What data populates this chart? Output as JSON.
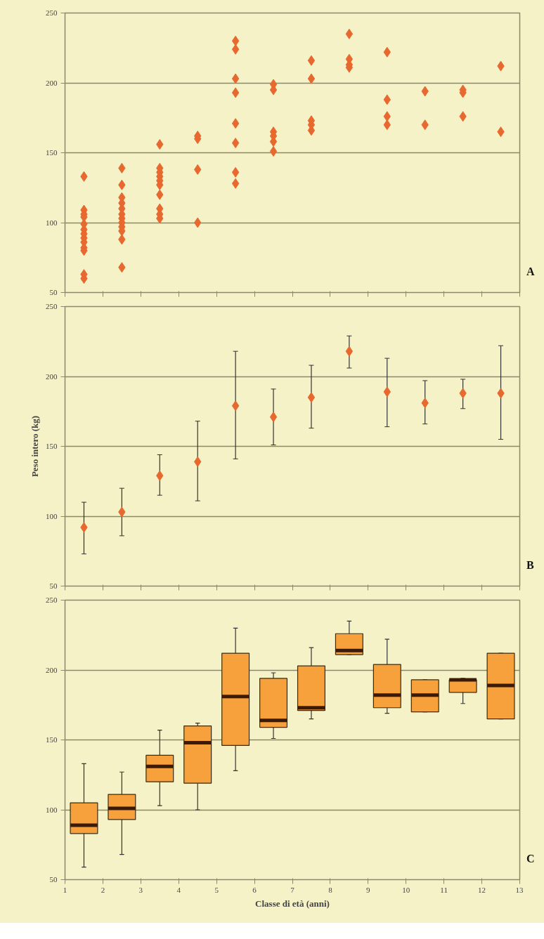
{
  "chart_data": [
    {
      "type": "scatter",
      "marker": "diamond",
      "color": "#e8692f",
      "x": [
        1.5,
        1.5,
        1.5,
        1.5,
        1.5,
        1.5,
        1.5,
        1.5,
        1.5,
        1.5,
        1.5,
        1.5,
        1.5,
        2.5,
        2.5,
        2.5,
        2.5,
        2.5,
        2.5,
        2.5,
        2.5,
        2.5,
        2.5,
        2.5,
        2.5,
        3.5,
        3.5,
        3.5,
        3.5,
        3.5,
        3.5,
        3.5,
        3.5,
        3.5,
        3.5,
        4.5,
        4.5,
        4.5,
        4.5,
        5.5,
        5.5,
        5.5,
        5.5,
        5.5,
        5.5,
        5.5,
        5.5,
        6.5,
        6.5,
        6.5,
        6.5,
        6.5,
        6.5,
        7.5,
        7.5,
        7.5,
        7.5,
        7.5,
        8.5,
        8.5,
        8.5,
        8.5,
        9.5,
        9.5,
        9.5,
        9.5,
        10.5,
        10.5,
        11.5,
        11.5,
        11.5,
        12.5,
        12.5
      ],
      "values": [
        133,
        109,
        106,
        104,
        99,
        95,
        92,
        89,
        86,
        82,
        80,
        63,
        60,
        139,
        127,
        118,
        114,
        110,
        106,
        103,
        100,
        97,
        94,
        88,
        68,
        156,
        139,
        136,
        133,
        130,
        127,
        120,
        110,
        106,
        103,
        162,
        160,
        138,
        100,
        230,
        224,
        203,
        193,
        171,
        157,
        136,
        128,
        199,
        195,
        165,
        162,
        158,
        151,
        216,
        203,
        173,
        170,
        166,
        235,
        217,
        213,
        211,
        222,
        188,
        176,
        170,
        194,
        170,
        195,
        193,
        176,
        212,
        165
      ],
      "xlim": [
        1,
        13
      ],
      "xticks": [
        1,
        2,
        3,
        4,
        5,
        6,
        7,
        8,
        9,
        10,
        11,
        12,
        13
      ],
      "ylim": [
        50,
        250
      ],
      "yticks": [
        50,
        100,
        150,
        200,
        250
      ],
      "grid": "y",
      "tick_labels": "y",
      "annotations": [
        "A"
      ]
    },
    {
      "type": "scatter",
      "marker": "diamond",
      "color": "#e8692f",
      "x": [
        1.5,
        2.5,
        3.5,
        4.5,
        5.5,
        6.5,
        7.5,
        8.5,
        9.5,
        10.5,
        11.5,
        12.5
      ],
      "values": [
        92,
        103,
        129,
        139,
        179,
        171,
        185,
        218,
        189,
        181,
        188,
        188
      ],
      "errors": [
        [
          73,
          110
        ],
        [
          86,
          120
        ],
        [
          115,
          144
        ],
        [
          111,
          168
        ],
        [
          141,
          218
        ],
        [
          151,
          191
        ],
        [
          163,
          208
        ],
        [
          206,
          229
        ],
        [
          164,
          213
        ],
        [
          166,
          197
        ],
        [
          177,
          198
        ],
        [
          155,
          222
        ]
      ],
      "ylabel": "Peso intero (kg)",
      "xlim": [
        1,
        13
      ],
      "xticks": [
        1,
        2,
        3,
        4,
        5,
        6,
        7,
        8,
        9,
        10,
        11,
        12,
        13
      ],
      "ylim": [
        50,
        250
      ],
      "yticks": [
        50,
        100,
        150,
        200,
        250
      ],
      "grid": "y",
      "tick_labels": "y",
      "annotations": [
        "B"
      ]
    },
    {
      "type": "box",
      "color": "#f7a13c",
      "x": [
        1.5,
        2.5,
        3.5,
        4.5,
        5.5,
        6.5,
        7.5,
        8.5,
        9.5,
        10.5,
        11.5,
        12.5
      ],
      "boxes": [
        {
          "low": 59,
          "q1": 83,
          "median": 89,
          "q3": 105,
          "high": 133
        },
        {
          "low": 68,
          "q1": 93,
          "median": 101,
          "q3": 111,
          "high": 127
        },
        {
          "low": 103,
          "q1": 120,
          "median": 131,
          "q3": 139,
          "high": 157
        },
        {
          "low": 100,
          "q1": 119,
          "median": 148,
          "q3": 160,
          "high": 162
        },
        {
          "low": 128,
          "q1": 146,
          "median": 181,
          "q3": 212,
          "high": 230
        },
        {
          "low": 151,
          "q1": 159,
          "median": 164,
          "q3": 194,
          "high": 198
        },
        {
          "low": 165,
          "q1": 171,
          "median": 173,
          "q3": 203,
          "high": 216
        },
        {
          "low": 211,
          "q1": 211,
          "median": 214,
          "q3": 226,
          "high": 235
        },
        {
          "low": 169,
          "q1": 173,
          "median": 182,
          "q3": 204,
          "high": 222
        },
        {
          "low": 170,
          "q1": 170,
          "median": 182,
          "q3": 193,
          "high": 193
        },
        {
          "low": 176,
          "q1": 184,
          "median": 193,
          "q3": 193,
          "high": 194
        },
        {
          "low": 165,
          "q1": 165,
          "median": 189,
          "q3": 212,
          "high": 212
        }
      ],
      "xlabel": "Classe di età (anni)",
      "xlim": [
        1,
        13
      ],
      "xticks": [
        1,
        2,
        3,
        4,
        5,
        6,
        7,
        8,
        9,
        10,
        11,
        12,
        13
      ],
      "ylim": [
        50,
        250
      ],
      "yticks": [
        50,
        100,
        150,
        200,
        250
      ],
      "grid": "y",
      "annotations": [
        "C"
      ]
    }
  ]
}
